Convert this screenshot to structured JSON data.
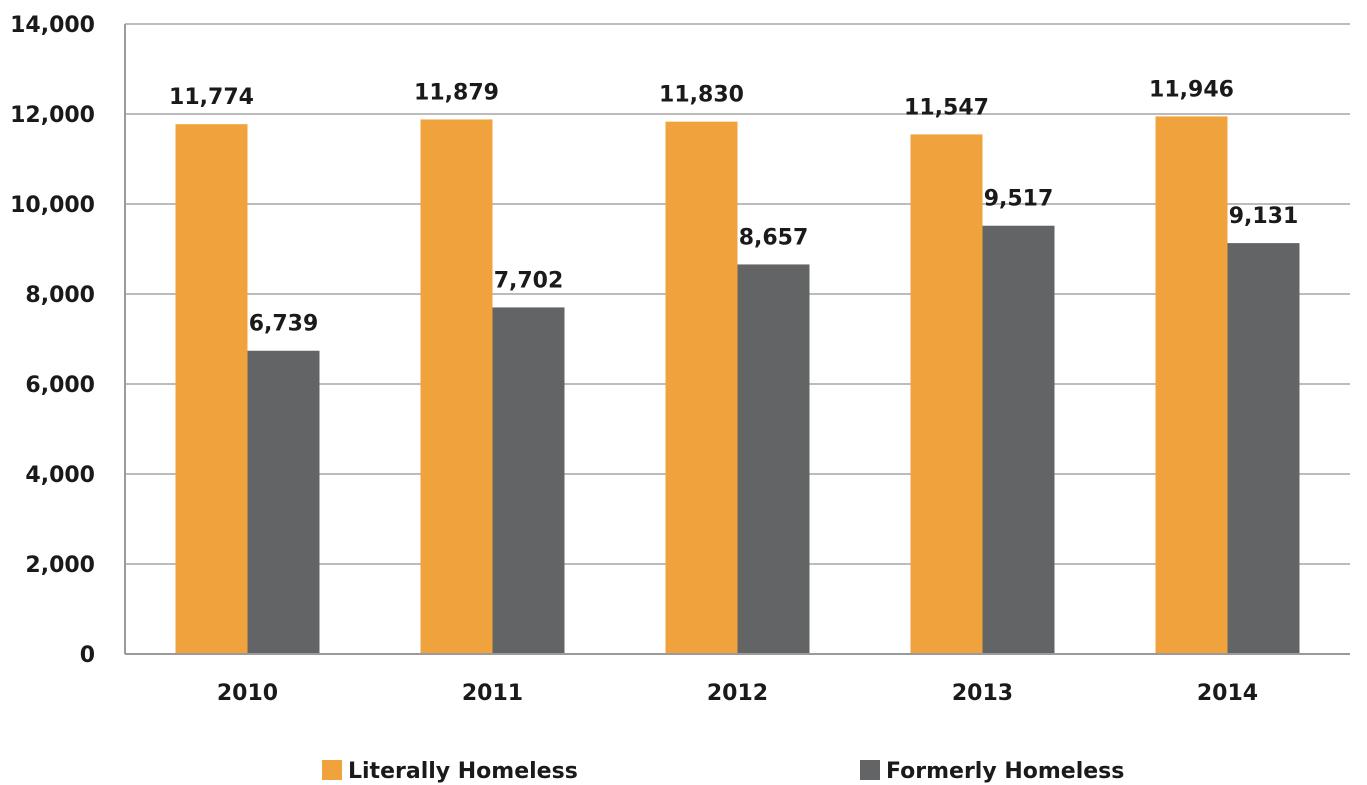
{
  "chart_data": {
    "type": "bar",
    "categories": [
      "2010",
      "2011",
      "2012",
      "2013",
      "2014"
    ],
    "series": [
      {
        "name": "Literally Homeless",
        "color": "#F0A33D",
        "values": [
          11774,
          11879,
          11830,
          11547,
          11946
        ],
        "labels": [
          "11,774",
          "11,879",
          "11,830",
          "11,547",
          "11,946"
        ]
      },
      {
        "name": "Formerly Homeless",
        "color": "#636466",
        "values": [
          6739,
          7702,
          8657,
          9517,
          9131
        ],
        "labels": [
          "6,739",
          "7,702",
          "8,657",
          "9,517",
          "9,131"
        ]
      }
    ],
    "ylim": [
      0,
      14000
    ],
    "yticks": [
      0,
      2000,
      4000,
      6000,
      8000,
      10000,
      12000,
      14000
    ],
    "ytick_labels": [
      "0",
      "2,000",
      "4,000",
      "6,000",
      "8,000",
      "10,000",
      "12,000",
      "14,000"
    ],
    "grid": true,
    "legend_position": "bottom"
  }
}
